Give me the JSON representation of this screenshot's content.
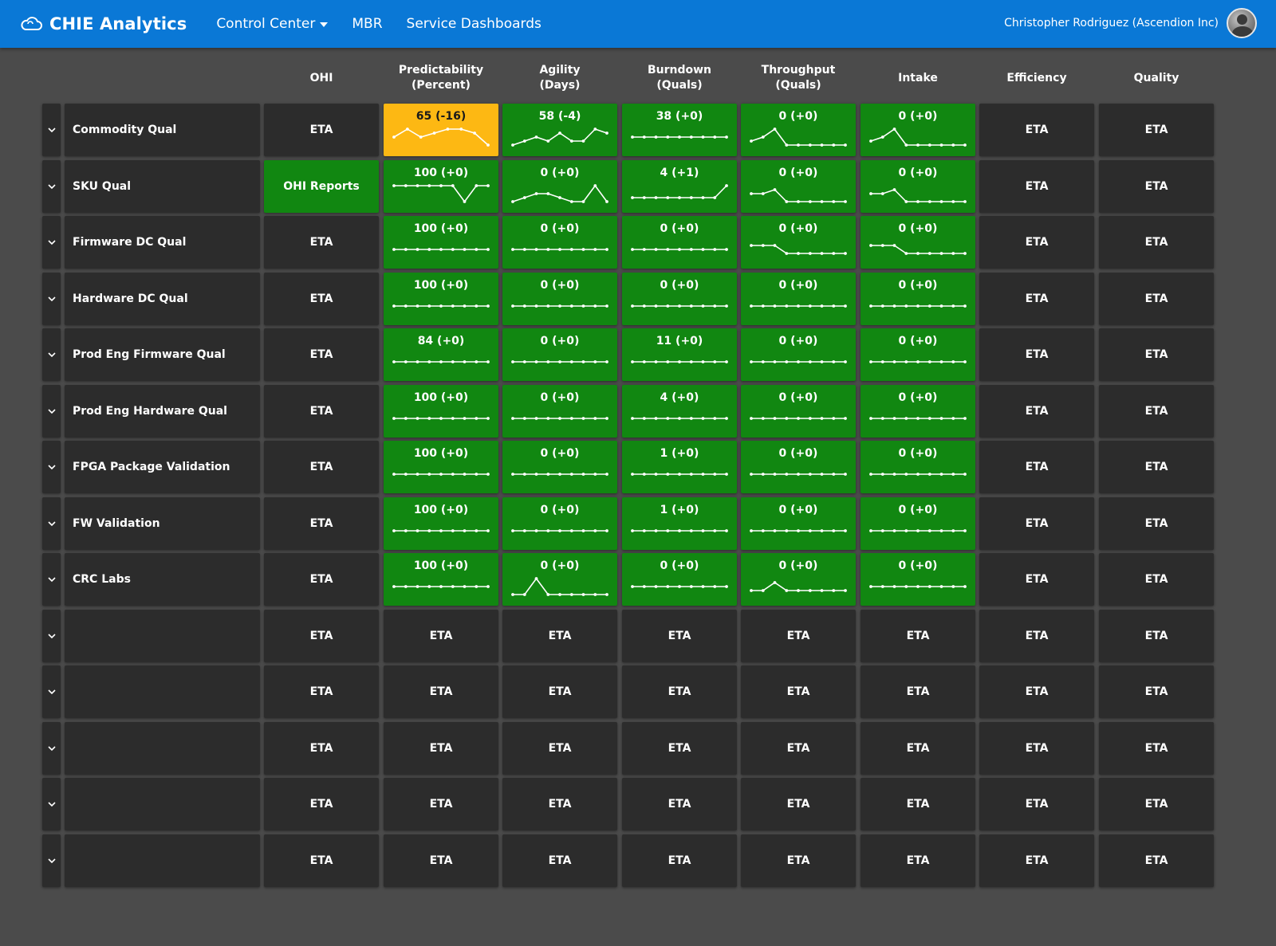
{
  "app": {
    "title": "CHIE Analytics",
    "accent_color": "#0a78d6",
    "logo_icon": "cloud-icon"
  },
  "nav": {
    "items": [
      {
        "label": "Control Center",
        "dropdown": true
      },
      {
        "label": "MBR",
        "dropdown": false
      },
      {
        "label": "Service Dashboards",
        "dropdown": false
      }
    ]
  },
  "user": {
    "name": "Christopher Rodriguez (Ascendion Inc)"
  },
  "colors": {
    "green": "#118711",
    "yellow": "#fdb813",
    "dark_cell": "#2c2c2c",
    "background": "#4b4b4b"
  },
  "table": {
    "columns": [
      {
        "key": "ohi",
        "label": "OHI"
      },
      {
        "key": "predictability",
        "label": "Predictability\n(Percent)"
      },
      {
        "key": "agility",
        "label": "Agility\n(Days)"
      },
      {
        "key": "burndown",
        "label": "Burndown\n(Quals)"
      },
      {
        "key": "throughput",
        "label": "Throughput\n(Quals)"
      },
      {
        "key": "intake",
        "label": "Intake"
      },
      {
        "key": "efficiency",
        "label": "Efficiency"
      },
      {
        "key": "quality",
        "label": "Quality"
      }
    ],
    "placeholder": "ETA",
    "rows": [
      {
        "name": "Commodity Qual",
        "ohi": "ETA",
        "metrics": [
          {
            "value": "65 (-16)",
            "status": "yellow",
            "trend": [
              3,
              5,
              3,
              4,
              5,
              5,
              4,
              1
            ]
          },
          {
            "value": "58 (-4)",
            "status": "green",
            "trend": [
              1,
              2,
              3,
              2,
              4,
              2,
              2,
              5,
              4
            ]
          },
          {
            "value": "38 (+0)",
            "status": "green",
            "trend": [
              3,
              3,
              3,
              3,
              3,
              3,
              3,
              3,
              3
            ]
          },
          {
            "value": "0 (+0)",
            "status": "green",
            "trend": [
              2,
              3,
              5,
              1,
              1,
              1,
              1,
              1,
              1
            ]
          },
          {
            "value": "0 (+0)",
            "status": "green",
            "trend": [
              2,
              3,
              5,
              1,
              1,
              1,
              1,
              1,
              1
            ]
          }
        ],
        "efficiency": "ETA",
        "quality": "ETA"
      },
      {
        "name": "SKU Qual",
        "ohi": "OHI Reports",
        "metrics": [
          {
            "value": "100 (+0)",
            "status": "green",
            "trend": [
              5,
              5,
              5,
              5,
              5,
              5,
              1,
              5,
              5
            ]
          },
          {
            "value": "0 (+0)",
            "status": "green",
            "trend": [
              1,
              2,
              3,
              3,
              2,
              1,
              1,
              5,
              1
            ]
          },
          {
            "value": "4 (+1)",
            "status": "green",
            "trend": [
              2,
              2,
              2,
              2,
              2,
              2,
              2,
              2,
              5
            ]
          },
          {
            "value": "0 (+0)",
            "status": "green",
            "trend": [
              3,
              3,
              4,
              1,
              1,
              1,
              1,
              1,
              1
            ]
          },
          {
            "value": "0 (+0)",
            "status": "green",
            "trend": [
              3,
              3,
              4,
              1,
              1,
              1,
              1,
              1,
              1
            ]
          }
        ],
        "efficiency": "ETA",
        "quality": "ETA"
      },
      {
        "name": "Firmware DC Qual",
        "ohi": "ETA",
        "metrics": [
          {
            "value": "100 (+0)",
            "status": "green",
            "trend": [
              3,
              3,
              3,
              3,
              3,
              3,
              3,
              3,
              3
            ]
          },
          {
            "value": "0 (+0)",
            "status": "green",
            "trend": [
              3,
              3,
              3,
              3,
              3,
              3,
              3,
              3,
              3
            ]
          },
          {
            "value": "0 (+0)",
            "status": "green",
            "trend": [
              3,
              3,
              3,
              3,
              3,
              3,
              3,
              3,
              3
            ]
          },
          {
            "value": "0 (+0)",
            "status": "green",
            "trend": [
              4,
              4,
              4,
              2,
              2,
              2,
              2,
              2,
              2
            ]
          },
          {
            "value": "0 (+0)",
            "status": "green",
            "trend": [
              4,
              4,
              4,
              2,
              2,
              2,
              2,
              2,
              2
            ]
          }
        ],
        "efficiency": "ETA",
        "quality": "ETA"
      },
      {
        "name": "Hardware DC Qual",
        "ohi": "ETA",
        "metrics": [
          {
            "value": "100 (+0)",
            "status": "green",
            "trend": [
              3,
              3,
              3,
              3,
              3,
              3,
              3,
              3,
              3
            ]
          },
          {
            "value": "0 (+0)",
            "status": "green",
            "trend": [
              3,
              3,
              3,
              3,
              3,
              3,
              3,
              3,
              3
            ]
          },
          {
            "value": "0 (+0)",
            "status": "green",
            "trend": [
              3,
              3,
              3,
              3,
              3,
              3,
              3,
              3,
              3
            ]
          },
          {
            "value": "0 (+0)",
            "status": "green",
            "trend": [
              3,
              3,
              3,
              3,
              3,
              3,
              3,
              3,
              3
            ]
          },
          {
            "value": "0 (+0)",
            "status": "green",
            "trend": [
              3,
              3,
              3,
              3,
              3,
              3,
              3,
              3,
              3
            ]
          }
        ],
        "efficiency": "ETA",
        "quality": "ETA"
      },
      {
        "name": "Prod Eng Firmware Qual",
        "ohi": "ETA",
        "metrics": [
          {
            "value": "84 (+0)",
            "status": "green",
            "trend": [
              3,
              3,
              3,
              3,
              3,
              3,
              3,
              3,
              3
            ]
          },
          {
            "value": "0 (+0)",
            "status": "green",
            "trend": [
              3,
              3,
              3,
              3,
              3,
              3,
              3,
              3,
              3
            ]
          },
          {
            "value": "11 (+0)",
            "status": "green",
            "trend": [
              3,
              3,
              3,
              3,
              3,
              3,
              3,
              3,
              3
            ]
          },
          {
            "value": "0 (+0)",
            "status": "green",
            "trend": [
              3,
              3,
              3,
              3,
              3,
              3,
              3,
              3,
              3
            ]
          },
          {
            "value": "0 (+0)",
            "status": "green",
            "trend": [
              3,
              3,
              3,
              3,
              3,
              3,
              3,
              3,
              3
            ]
          }
        ],
        "efficiency": "ETA",
        "quality": "ETA"
      },
      {
        "name": "Prod Eng Hardware Qual",
        "ohi": "ETA",
        "metrics": [
          {
            "value": "100 (+0)",
            "status": "green",
            "trend": [
              3,
              3,
              3,
              3,
              3,
              3,
              3,
              3,
              3
            ]
          },
          {
            "value": "0 (+0)",
            "status": "green",
            "trend": [
              3,
              3,
              3,
              3,
              3,
              3,
              3,
              3,
              3
            ]
          },
          {
            "value": "4 (+0)",
            "status": "green",
            "trend": [
              3,
              3,
              3,
              3,
              3,
              3,
              3,
              3,
              3
            ]
          },
          {
            "value": "0 (+0)",
            "status": "green",
            "trend": [
              3,
              3,
              3,
              3,
              3,
              3,
              3,
              3,
              3
            ]
          },
          {
            "value": "0 (+0)",
            "status": "green",
            "trend": [
              3,
              3,
              3,
              3,
              3,
              3,
              3,
              3,
              3
            ]
          }
        ],
        "efficiency": "ETA",
        "quality": "ETA"
      },
      {
        "name": "FPGA Package Validation",
        "ohi": "ETA",
        "metrics": [
          {
            "value": "100 (+0)",
            "status": "green",
            "trend": [
              3,
              3,
              3,
              3,
              3,
              3,
              3,
              3,
              3
            ]
          },
          {
            "value": "0 (+0)",
            "status": "green",
            "trend": [
              3,
              3,
              3,
              3,
              3,
              3,
              3,
              3,
              3
            ]
          },
          {
            "value": "1 (+0)",
            "status": "green",
            "trend": [
              3,
              3,
              3,
              3,
              3,
              3,
              3,
              3,
              3
            ]
          },
          {
            "value": "0 (+0)",
            "status": "green",
            "trend": [
              3,
              3,
              3,
              3,
              3,
              3,
              3,
              3,
              3
            ]
          },
          {
            "value": "0 (+0)",
            "status": "green",
            "trend": [
              3,
              3,
              3,
              3,
              3,
              3,
              3,
              3,
              3
            ]
          }
        ],
        "efficiency": "ETA",
        "quality": "ETA"
      },
      {
        "name": "FW Validation",
        "ohi": "ETA",
        "metrics": [
          {
            "value": "100 (+0)",
            "status": "green",
            "trend": [
              3,
              3,
              3,
              3,
              3,
              3,
              3,
              3,
              3
            ]
          },
          {
            "value": "0 (+0)",
            "status": "green",
            "trend": [
              3,
              3,
              3,
              3,
              3,
              3,
              3,
              3,
              3
            ]
          },
          {
            "value": "1 (+0)",
            "status": "green",
            "trend": [
              3,
              3,
              3,
              3,
              3,
              3,
              3,
              3,
              3
            ]
          },
          {
            "value": "0 (+0)",
            "status": "green",
            "trend": [
              3,
              3,
              3,
              3,
              3,
              3,
              3,
              3,
              3
            ]
          },
          {
            "value": "0 (+0)",
            "status": "green",
            "trend": [
              3,
              3,
              3,
              3,
              3,
              3,
              3,
              3,
              3
            ]
          }
        ],
        "efficiency": "ETA",
        "quality": "ETA"
      },
      {
        "name": "CRC Labs",
        "ohi": "ETA",
        "metrics": [
          {
            "value": "100 (+0)",
            "status": "green",
            "trend": [
              3,
              3,
              3,
              3,
              3,
              3,
              3,
              3,
              3
            ]
          },
          {
            "value": "0 (+0)",
            "status": "green",
            "trend": [
              1,
              1,
              5,
              1,
              1,
              1,
              1,
              1,
              1
            ]
          },
          {
            "value": "0 (+0)",
            "status": "green",
            "trend": [
              3,
              3,
              3,
              3,
              3,
              3,
              3,
              3,
              3
            ]
          },
          {
            "value": "0 (+0)",
            "status": "green",
            "trend": [
              2,
              2,
              4,
              2,
              2,
              2,
              2,
              2,
              2
            ]
          },
          {
            "value": "0 (+0)",
            "status": "green",
            "trend": [
              3,
              3,
              3,
              3,
              3,
              3,
              3,
              3,
              3
            ]
          }
        ],
        "efficiency": "ETA",
        "quality": "ETA"
      },
      {
        "name": "",
        "ohi": "ETA",
        "metrics": null,
        "efficiency": "ETA",
        "quality": "ETA"
      },
      {
        "name": "",
        "ohi": "ETA",
        "metrics": null,
        "efficiency": "ETA",
        "quality": "ETA"
      },
      {
        "name": "",
        "ohi": "ETA",
        "metrics": null,
        "efficiency": "ETA",
        "quality": "ETA"
      },
      {
        "name": "",
        "ohi": "ETA",
        "metrics": null,
        "efficiency": "ETA",
        "quality": "ETA"
      },
      {
        "name": "",
        "ohi": "ETA",
        "metrics": null,
        "efficiency": "ETA",
        "quality": "ETA"
      }
    ]
  }
}
